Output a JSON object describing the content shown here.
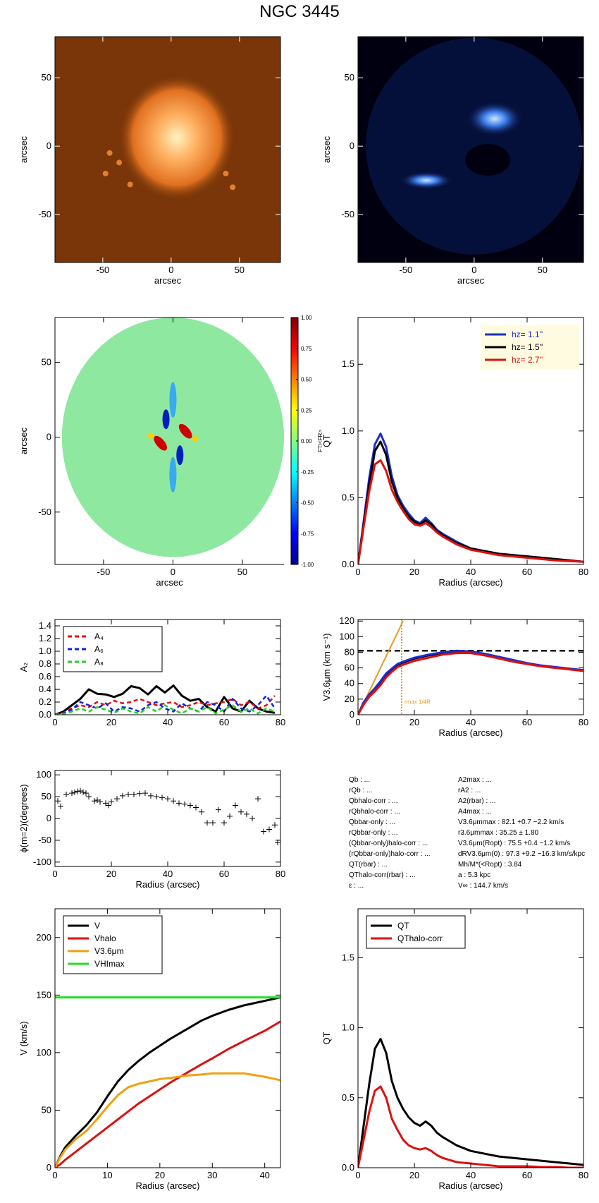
{
  "title": "NGC 3445",
  "chart_data": [
    {
      "type": "image",
      "style": "orange",
      "xlabel": "arcsec",
      "ylabel": "arcsec",
      "xlim": [
        -85,
        80
      ],
      "ylim": [
        -85,
        80
      ],
      "xticks": [
        -50,
        0,
        50
      ],
      "yticks": [
        -50,
        0,
        50
      ]
    },
    {
      "type": "image",
      "style": "blue",
      "xlabel": "arcsec",
      "ylabel": "arcsec",
      "xlim": [
        -85,
        80
      ],
      "ylim": [
        -85,
        80
      ],
      "xticks": [
        -50,
        0,
        50
      ],
      "yticks": [
        -50,
        0,
        50
      ]
    },
    {
      "type": "heatmap",
      "xlabel": "arcsec",
      "ylabel": "arcsec",
      "xlim": [
        -85,
        80
      ],
      "ylim": [
        -85,
        80
      ],
      "xticks": [
        -50,
        0,
        50
      ],
      "yticks": [
        -50,
        0,
        50
      ],
      "colorbar": {
        "label": "FT/<FR>",
        "lim": [
          -1,
          1
        ],
        "ticks": [
          {
            "value": -1,
            "label": "-1.00"
          },
          {
            "value": -0.75,
            "label": "-0.75"
          },
          {
            "value": -0.5,
            "label": "-0.50"
          },
          {
            "value": -0.25,
            "label": "-0.25"
          },
          {
            "value": 0,
            "label": "0.00"
          },
          {
            "value": 0.25,
            "label": "0.25"
          },
          {
            "value": 0.5,
            "label": "0.50"
          },
          {
            "value": 0.75,
            "label": "0.75"
          },
          {
            "value": 1,
            "label": "1.00"
          }
        ]
      }
    },
    {
      "type": "line",
      "xlabel": "Radius (arcsec)",
      "ylabel": "QT",
      "xlim": [
        0,
        80
      ],
      "ylim": [
        0,
        1.85
      ],
      "xticks": [
        0,
        20,
        40,
        60,
        80
      ],
      "yticks": [
        {
          "value": 0,
          "label": "0.0"
        },
        {
          "value": 0.5,
          "label": "0.5"
        },
        {
          "value": 1,
          "label": "1.0"
        },
        {
          "value": 1.5,
          "label": "1.5"
        }
      ],
      "legend": "upper right",
      "legend_box": "#fffbe0",
      "legend_text": "colored",
      "x": [
        0,
        2,
        4,
        6,
        8,
        10,
        12,
        14,
        16,
        18,
        20,
        22,
        24,
        26,
        28,
        30,
        35,
        40,
        45,
        50,
        55,
        60,
        65,
        70,
        75,
        80
      ],
      "series": [
        {
          "name": "hz=  1.1''",
          "color": "#1a2ed0",
          "values": [
            0,
            0.32,
            0.65,
            0.9,
            0.98,
            0.88,
            0.66,
            0.52,
            0.44,
            0.38,
            0.33,
            0.31,
            0.35,
            0.31,
            0.26,
            0.23,
            0.17,
            0.12,
            0.1,
            0.08,
            0.07,
            0.06,
            0.05,
            0.04,
            0.03,
            0.02
          ]
        },
        {
          "name": "hz=  1.5''",
          "color": "#000000",
          "values": [
            0,
            0.3,
            0.6,
            0.85,
            0.92,
            0.82,
            0.62,
            0.5,
            0.42,
            0.36,
            0.32,
            0.3,
            0.33,
            0.3,
            0.25,
            0.22,
            0.16,
            0.12,
            0.1,
            0.08,
            0.07,
            0.06,
            0.05,
            0.04,
            0.03,
            0.02
          ]
        },
        {
          "name": "hz=  2.7''",
          "color": "#dd1111",
          "values": [
            0,
            0.28,
            0.55,
            0.75,
            0.78,
            0.7,
            0.56,
            0.47,
            0.4,
            0.34,
            0.3,
            0.29,
            0.31,
            0.28,
            0.24,
            0.21,
            0.15,
            0.11,
            0.09,
            0.07,
            0.06,
            0.05,
            0.04,
            0.03,
            0.025,
            0.02
          ]
        }
      ]
    },
    {
      "type": "line",
      "xlabel": "",
      "ylabel": "A₂",
      "xlim": [
        0,
        80
      ],
      "ylim": [
        0,
        1.5
      ],
      "xticks": [
        0,
        20,
        40,
        60,
        80
      ],
      "yticks": [
        {
          "value": 0,
          "label": "0.0"
        },
        {
          "value": 0.2,
          "label": "0.2"
        },
        {
          "value": 0.4,
          "label": "0.4"
        },
        {
          "value": 0.6,
          "label": "0.6"
        },
        {
          "value": 0.8,
          "label": "0.8"
        },
        {
          "value": 1,
          "label": "1.0"
        },
        {
          "value": 1.2,
          "label": "1.2"
        },
        {
          "value": 1.4,
          "label": "1.4"
        }
      ],
      "legend": "upper left",
      "x": [
        0,
        3,
        6,
        9,
        12,
        15,
        18,
        21,
        24,
        27,
        30,
        33,
        36,
        39,
        42,
        45,
        48,
        51,
        54,
        57,
        60,
        63,
        66,
        69,
        72,
        75,
        78
      ],
      "series": [
        {
          "color": "#000000",
          "values": [
            0,
            0.05,
            0.15,
            0.25,
            0.4,
            0.33,
            0.32,
            0.28,
            0.33,
            0.45,
            0.42,
            0.32,
            0.45,
            0.35,
            0.46,
            0.3,
            0.22,
            0.25,
            0.12,
            0.05,
            0.28,
            0.1,
            0.05,
            0.22,
            0.1,
            0.05,
            0.03
          ]
        },
        {
          "name": "A₄",
          "color": "#e01010",
          "dash": true,
          "values": [
            0,
            0.03,
            0.1,
            0.15,
            0.12,
            0.2,
            0.15,
            0.22,
            0.18,
            0.2,
            0.25,
            0.2,
            0.15,
            0.18,
            0.2,
            0.12,
            0.15,
            0.2,
            0.15,
            0.18,
            0.2,
            0.25,
            0.15,
            0.2,
            0.1,
            0.15,
            0.3
          ]
        },
        {
          "name": "A₆",
          "color": "#1020e0",
          "dash": true,
          "values": [
            0,
            0.02,
            0.08,
            0.2,
            0.15,
            0.1,
            0.18,
            0.05,
            0.12,
            0.1,
            0.05,
            0.15,
            0.2,
            0.1,
            0.05,
            0.18,
            0.1,
            0.05,
            0.2,
            0.15,
            0.05,
            0.25,
            0.1,
            0.05,
            0.15,
            0.3,
            0.1
          ]
        },
        {
          "name": "A₈",
          "color": "#20d020",
          "dash": true,
          "values": [
            0,
            0.01,
            0.05,
            0.1,
            0.05,
            0.12,
            0.08,
            0.03,
            0.1,
            0.05,
            0.02,
            0.12,
            0.05,
            0.15,
            0.08,
            0.02,
            0.1,
            0.05,
            0.12,
            0.02,
            0.08,
            0.15,
            0.05,
            0.1,
            0.02,
            0.1,
            0.05
          ]
        }
      ]
    },
    {
      "type": "line",
      "xlabel": "Radius (arcsec)",
      "ylabel": "V3.6μm (km s⁻¹)",
      "xlim": [
        0,
        80
      ],
      "ylim": [
        0,
        122
      ],
      "xticks": [
        0,
        20,
        40,
        60,
        80
      ],
      "yticks": [
        0,
        20,
        40,
        60,
        80,
        100,
        120
      ],
      "x": [
        0,
        2,
        4,
        6,
        8,
        10,
        12,
        14,
        16,
        20,
        25,
        30,
        35,
        40,
        45,
        50,
        55,
        60,
        65,
        70,
        75,
        80
      ],
      "series": [
        {
          "color": "#000000",
          "values": [
            0,
            15,
            25,
            33,
            42,
            52,
            58,
            64,
            67,
            72,
            76,
            79,
            81,
            81,
            78,
            74,
            70,
            66,
            63,
            61,
            59,
            57
          ]
        },
        {
          "color": "#1a2ed0",
          "values": [
            0,
            16,
            26,
            34,
            43,
            53,
            59,
            65,
            68,
            73,
            77,
            80,
            82,
            81,
            78,
            74,
            70,
            66,
            63,
            61,
            59,
            57
          ]
        },
        {
          "color": "#dd1111",
          "values": [
            0,
            13,
            23,
            30,
            38,
            48,
            55,
            61,
            64,
            69,
            73,
            77,
            79,
            79,
            76,
            72,
            68,
            65,
            62,
            60,
            58,
            56
          ]
        }
      ],
      "hline": 82,
      "vline": 15.5,
      "guide": {
        "x": [
          0,
          16
        ],
        "values": [
          0,
          120
        ],
        "color": "#e89a20"
      },
      "annotation": "rmax 1/4R"
    },
    {
      "type": "scatter",
      "xlabel": "Radius (arcsec)",
      "ylabel": "ϕ(m=2)(degrees)",
      "xlim": [
        0,
        80
      ],
      "ylim": [
        -110,
        110
      ],
      "xticks": [
        0,
        20,
        40,
        60,
        80
      ],
      "yticks": [
        -100,
        -50,
        0,
        50,
        100
      ],
      "x": [
        1,
        2,
        4,
        6,
        7,
        8,
        9,
        10,
        11,
        12,
        14,
        15,
        16,
        18,
        19,
        20,
        22,
        24,
        26,
        28,
        30,
        32,
        34,
        36,
        38,
        40,
        42,
        44,
        46,
        48,
        50,
        52,
        54,
        56,
        58,
        60,
        62,
        64,
        66,
        68,
        70,
        72,
        74,
        76,
        78,
        79
      ],
      "values": [
        40,
        28,
        55,
        58,
        60,
        62,
        63,
        60,
        58,
        50,
        40,
        42,
        38,
        35,
        30,
        38,
        45,
        52,
        55,
        55,
        57,
        58,
        52,
        50,
        48,
        45,
        40,
        35,
        33,
        30,
        25,
        15,
        -10,
        -10,
        20,
        -10,
        5,
        30,
        15,
        10,
        0,
        45,
        -30,
        -25,
        -15,
        -55
      ]
    },
    {
      "type": "line",
      "xlabel": "Radius (arcsec)",
      "ylabel": "V (km/s)",
      "xlim": [
        0,
        43
      ],
      "ylim": [
        0,
        225
      ],
      "xticks": [
        0,
        10,
        20,
        30,
        40
      ],
      "yticks": [
        0,
        50,
        100,
        150,
        200
      ],
      "legend": "upper left",
      "x": [
        0,
        1,
        2,
        4,
        6,
        8,
        10,
        12,
        14,
        16,
        18,
        20,
        22,
        25,
        28,
        30,
        33,
        36,
        40,
        43
      ],
      "series": [
        {
          "name": "V",
          "color": "#000000",
          "values": [
            0,
            10,
            18,
            28,
            37,
            48,
            62,
            75,
            85,
            93,
            100,
            106,
            112,
            120,
            128,
            132,
            137,
            141,
            145,
            148
          ]
        },
        {
          "name": "Vhalo",
          "color": "#dd1111",
          "values": [
            0,
            3,
            7,
            14,
            21,
            28,
            35,
            42,
            49,
            56,
            62,
            68,
            74,
            82,
            90,
            95,
            103,
            110,
            119,
            127
          ]
        },
        {
          "name": "V3.6μm",
          "color": "#f0a010",
          "values": [
            0,
            9,
            16,
            25,
            32,
            42,
            53,
            63,
            70,
            73,
            75,
            77,
            78,
            80,
            81,
            82,
            82,
            82,
            79,
            76
          ]
        },
        {
          "name": "VHImax",
          "color": "#20dd20",
          "values": [
            148,
            148,
            148,
            148,
            148,
            148,
            148,
            148,
            148,
            148,
            148,
            148,
            148,
            148,
            148,
            148,
            148,
            148,
            148,
            148
          ]
        }
      ]
    },
    {
      "type": "line",
      "xlabel": "Radius (arcsec)",
      "ylabel": "QT",
      "xlim": [
        0,
        80
      ],
      "ylim": [
        0,
        1.85
      ],
      "xticks": [
        0,
        20,
        40,
        60,
        80
      ],
      "yticks": [
        {
          "value": 0,
          "label": "0.0"
        },
        {
          "value": 0.5,
          "label": "0.5"
        },
        {
          "value": 1,
          "label": "1.0"
        },
        {
          "value": 1.5,
          "label": "1.5"
        }
      ],
      "legend": "upper left",
      "x": [
        0,
        2,
        4,
        6,
        8,
        10,
        12,
        14,
        16,
        18,
        20,
        22,
        24,
        26,
        28,
        30,
        35,
        40,
        45,
        50,
        55,
        60,
        65,
        70,
        75,
        80
      ],
      "series": [
        {
          "name": "QT",
          "color": "#000000",
          "values": [
            0,
            0.3,
            0.6,
            0.85,
            0.92,
            0.82,
            0.62,
            0.5,
            0.42,
            0.36,
            0.32,
            0.3,
            0.33,
            0.3,
            0.25,
            0.22,
            0.16,
            0.12,
            0.1,
            0.08,
            0.07,
            0.06,
            0.05,
            0.04,
            0.03,
            0.02
          ]
        },
        {
          "name": "QThalo-corr",
          "color": "#dd1111",
          "values": [
            0,
            0.2,
            0.4,
            0.55,
            0.58,
            0.5,
            0.35,
            0.27,
            0.2,
            0.16,
            0.14,
            0.13,
            0.14,
            0.12,
            0.09,
            0.07,
            0.04,
            0.03,
            0.02,
            0.01,
            0.01,
            0.01,
            0.005,
            0.005,
            0,
            0
          ]
        }
      ]
    }
  ],
  "info": {
    "left": [
      "Qb : ...",
      "rQb : ...",
      "Qbhalo-corr : ...",
      "rQbhalo-corr : ...",
      "Qbbar-only : ...",
      "rQbbar-only : ...",
      "(Qbbar-only)halo-corr : ...",
      "(rQbbar-only)halo-corr : ...",
      "QT(rbar) : ...",
      "QThalo-corr(rbar) : ...",
      "ε : ..."
    ],
    "right": [
      "A2max : ...",
      "rA2 : ...",
      "A2(rbar) : ...",
      "A4max : ...",
      "V3.6μmmax :  82.1 +0.7 −2.2 km/s",
      "r3.6μmmax :  35.25 ± 1.80",
      "V3.6μm(Ropt) :  75.5 +0.4 −1.2 km/s",
      "dRV3.6μm(0) :  97.3 +9.2 −16.3 km/s/kpc",
      "Mh/M*(<Ropt) :  3.84",
      "a :   5.3 kpc",
      "V∞ :  144.7 km/s"
    ]
  }
}
